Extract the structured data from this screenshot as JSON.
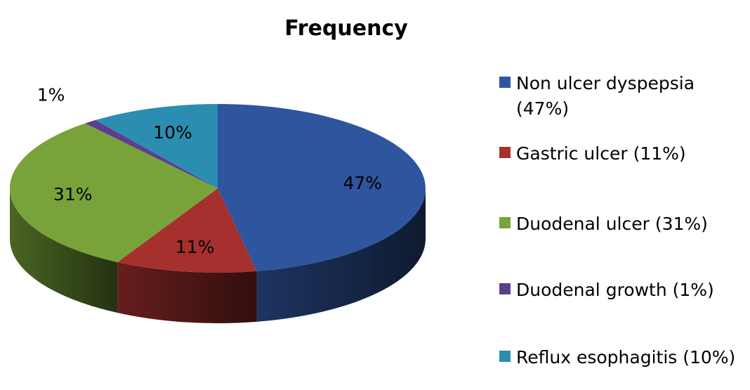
{
  "chart_data": {
    "type": "pie",
    "title": "Frequency",
    "categories": [
      "Non ulcer dyspepsia (47%)",
      "Gastric ulcer (11%)",
      "Duodenal ulcer (31%)",
      "Duodenal growth (1%)",
      "Reflux esophagitis (10%)"
    ],
    "values": [
      47,
      11,
      31,
      1,
      10
    ],
    "labels": [
      "47%",
      "11%",
      "31%",
      "1%",
      "10%"
    ],
    "colors": [
      "#2E559E",
      "#A6302E",
      "#77A33A",
      "#5C3F8C",
      "#2B8EB0"
    ],
    "three_d": true,
    "legend_position": "right"
  }
}
